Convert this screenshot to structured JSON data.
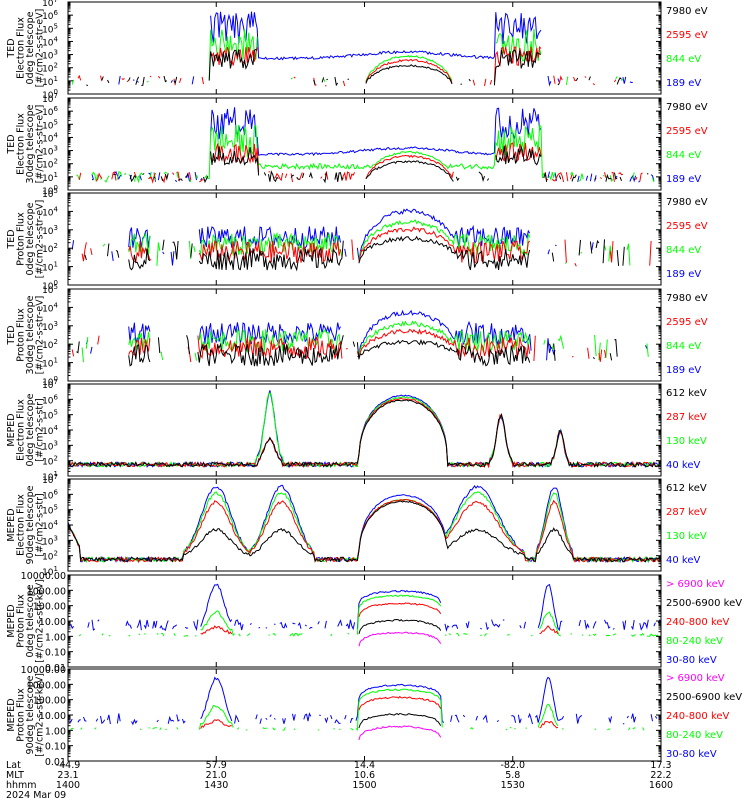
{
  "colors": {
    "blue": "#0000ff",
    "red": "#ff0000",
    "green": "#00ff00",
    "black": "#000000",
    "magenta": "#ff00ff",
    "frame": "#000000"
  },
  "footer": {
    "row_labels": [
      "Lat",
      "MLT",
      "hhmm",
      "2024 Mar 09"
    ],
    "columns": [
      {
        "lat": "-44.9",
        "mlt": "23.1",
        "hhmm": "1400"
      },
      {
        "lat": "57.9",
        "mlt": "21.0",
        "hhmm": "1430"
      },
      {
        "lat": "14.4",
        "mlt": "10.6",
        "hhmm": "1500"
      },
      {
        "lat": "-82.0",
        "mlt": "5.8",
        "hhmm": "1530"
      },
      {
        "lat": "17.3",
        "mlt": "22.2",
        "hhmm": "1600"
      }
    ]
  },
  "chart_data": [
    {
      "type": "line",
      "ylabel_lines": [
        "TED",
        "Electron Flux",
        "0deg telescope",
        "[#/cm2-s-str-eV]"
      ],
      "yscale": "log",
      "ylim_exp": [
        0,
        7
      ],
      "ytick_format": "pow10",
      "series": [
        {
          "name": "7980 eV",
          "color": "black"
        },
        {
          "name": "2595 eV",
          "color": "red"
        },
        {
          "name": "844 eV",
          "color": "green"
        },
        {
          "name": "189 eV",
          "color": "blue"
        }
      ]
    },
    {
      "type": "line",
      "ylabel_lines": [
        "TED",
        "Electron Flux",
        "30deg telescope",
        "[#/cm2-s-str-eV]"
      ],
      "yscale": "log",
      "ylim_exp": [
        0,
        7
      ],
      "ytick_format": "pow10",
      "series": [
        {
          "name": "7980 eV",
          "color": "black"
        },
        {
          "name": "2595 eV",
          "color": "red"
        },
        {
          "name": "844 eV",
          "color": "green"
        },
        {
          "name": "189 eV",
          "color": "blue"
        }
      ]
    },
    {
      "type": "line",
      "ylabel_lines": [
        "TED",
        "Proton Flux",
        "0deg telescope",
        "[#/cm2-s-str-eV]"
      ],
      "yscale": "log",
      "ylim_exp": [
        0,
        5
      ],
      "ytick_format": "pow10",
      "series": [
        {
          "name": "7980 eV",
          "color": "black"
        },
        {
          "name": "2595 eV",
          "color": "red"
        },
        {
          "name": "844 eV",
          "color": "green"
        },
        {
          "name": "189 eV",
          "color": "blue"
        }
      ]
    },
    {
      "type": "line",
      "ylabel_lines": [
        "TED",
        "Proton Flux",
        "30deg telescope",
        "[#/cm2-s-str-eV]"
      ],
      "yscale": "log",
      "ylim_exp": [
        0,
        5
      ],
      "ytick_format": "pow10",
      "series": [
        {
          "name": "7980 eV",
          "color": "black"
        },
        {
          "name": "2595 eV",
          "color": "red"
        },
        {
          "name": "844 eV",
          "color": "green"
        },
        {
          "name": "189 eV",
          "color": "blue"
        }
      ]
    },
    {
      "type": "line",
      "ylabel_lines": [
        "MEPED",
        "Electron Flux",
        "0deg telescope",
        "[#/cm2-s-str]"
      ],
      "yscale": "log",
      "ylim_exp": [
        1,
        7
      ],
      "ytick_format": "pow10",
      "series": [
        {
          "name": "612 keV",
          "color": "black"
        },
        {
          "name": "287 keV",
          "color": "red"
        },
        {
          "name": "130 keV",
          "color": "green"
        },
        {
          "name": "40 keV",
          "color": "blue"
        }
      ]
    },
    {
      "type": "line",
      "ylabel_lines": [
        "MEPED",
        "Electron Flux",
        "90deg telescope",
        "[#/cm2-s-str]"
      ],
      "yscale": "log",
      "ylim_exp": [
        1,
        7
      ],
      "ytick_format": "pow10",
      "series": [
        {
          "name": "612 keV",
          "color": "black"
        },
        {
          "name": "287 keV",
          "color": "red"
        },
        {
          "name": "130 keV",
          "color": "green"
        },
        {
          "name": "40 keV",
          "color": "blue"
        }
      ]
    },
    {
      "type": "line",
      "ylabel_lines": [
        "MEPED",
        "Proton Flux",
        "0deg telescope",
        "[#/cm2-s-str-keV]"
      ],
      "yscale": "log",
      "ylim_exp": [
        -2,
        4
      ],
      "ytick_format": "decimal",
      "series": [
        {
          "name": "> 6900 keV",
          "color": "magenta"
        },
        {
          "name": "2500-6900 keV",
          "color": "black"
        },
        {
          "name": "240-800 keV",
          "color": "red"
        },
        {
          "name": "80-240 keV",
          "color": "green"
        },
        {
          "name": "30-80 keV",
          "color": "blue"
        }
      ]
    },
    {
      "type": "line",
      "ylabel_lines": [
        "MEPED",
        "Proton Flux",
        "90deg telescope",
        "[#/cm2-s-str-keV]"
      ],
      "yscale": "log",
      "ylim_exp": [
        -2,
        4
      ],
      "ytick_format": "decimal",
      "series": [
        {
          "name": "> 6900 keV",
          "color": "magenta"
        },
        {
          "name": "2500-6900 keV",
          "color": "black"
        },
        {
          "name": "240-800 keV",
          "color": "red"
        },
        {
          "name": "80-240 keV",
          "color": "green"
        },
        {
          "name": "30-80 keV",
          "color": "blue"
        }
      ]
    }
  ]
}
